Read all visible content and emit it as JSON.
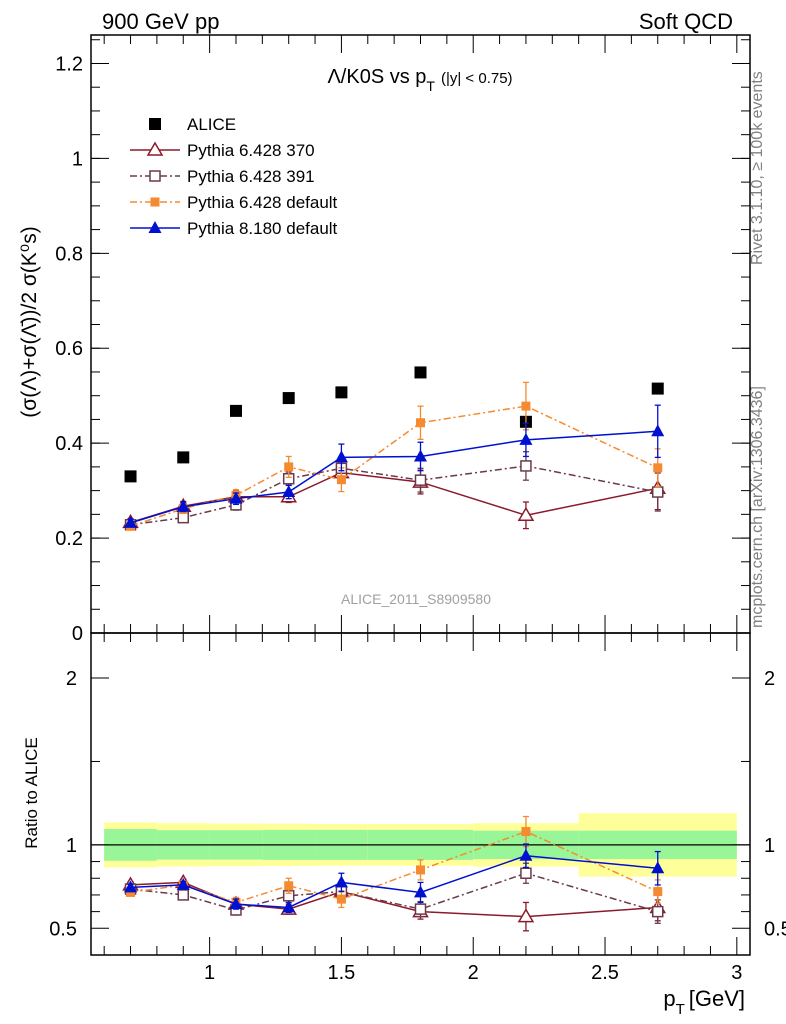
{
  "header": {
    "left": "900 GeV pp",
    "right": "Soft QCD"
  },
  "side_labels": {
    "rivet": "Rivet 3.1.10, ≥ 100k events",
    "mcplots": "mcplots.cern.ch [arXiv:1306.3436]"
  },
  "plot_title": {
    "main": "Λ/K0S vs p",
    "sub": "T",
    "suffix": "(|y| < 0.75)"
  },
  "watermark": "ALICE_2011_S8909580",
  "colors": {
    "alice": "#000000",
    "p370": "#8b1a2b",
    "p391": "#6b3a4a",
    "p6def": "#f58a30",
    "p8def": "#0010d0",
    "band_inner": "#98f598",
    "band_outer": "#ffff99"
  },
  "chart_data": [
    {
      "type": "scatter",
      "ylabel": "(σ(Λ)+σ(Λ̄))/2 σ(K⁰s)",
      "ylim": [
        0,
        1.26
      ],
      "xlim": [
        0.55,
        3.05
      ],
      "yticks": [
        "0",
        "0.2",
        "0.4",
        "0.6",
        "0.8",
        "1",
        "1.2"
      ],
      "legend_placement": "top-left",
      "series": [
        {
          "name": "ALICE",
          "marker": "filled-square",
          "x": [
            0.7,
            0.9,
            1.1,
            1.3,
            1.5,
            1.8,
            2.2,
            2.7
          ],
          "y": [
            0.33,
            0.37,
            0.468,
            0.495,
            0.507,
            0.549,
            0.445,
            0.515
          ]
        },
        {
          "name": "Pythia 6.428 370",
          "marker": "open-triangle",
          "line": "solid",
          "x": [
            0.7,
            0.9,
            1.1,
            1.3,
            1.5,
            1.8,
            2.2,
            2.7
          ],
          "y": [
            0.233,
            0.267,
            0.287,
            0.287,
            0.338,
            0.318,
            0.248,
            0.305
          ],
          "err": [
            0.008,
            0.01,
            0.012,
            0.012,
            0.02,
            0.025,
            0.028,
            0.045
          ]
        },
        {
          "name": "Pythia 6.428 391",
          "marker": "open-square",
          "line": "dash-dot",
          "x": [
            0.7,
            0.9,
            1.1,
            1.3,
            1.5,
            1.8,
            2.2,
            2.7
          ],
          "y": [
            0.228,
            0.243,
            0.27,
            0.325,
            0.347,
            0.322,
            0.352,
            0.297
          ],
          "err": [
            0.008,
            0.009,
            0.011,
            0.014,
            0.02,
            0.025,
            0.03,
            0.04
          ]
        },
        {
          "name": "Pythia 6.428 default",
          "marker": "filled-square-small",
          "line": "dash-dot",
          "x": [
            0.7,
            0.9,
            1.1,
            1.3,
            1.5,
            1.8,
            2.2,
            2.7
          ],
          "y": [
            0.225,
            0.262,
            0.29,
            0.35,
            0.323,
            0.443,
            0.478,
            0.348
          ],
          "err": [
            0.008,
            0.01,
            0.012,
            0.022,
            0.025,
            0.035,
            0.05,
            0.04
          ]
        },
        {
          "name": "Pythia 8.180 default",
          "marker": "filled-triangle",
          "line": "solid",
          "x": [
            0.7,
            0.9,
            1.1,
            1.3,
            1.5,
            1.8,
            2.2,
            2.7
          ],
          "y": [
            0.232,
            0.266,
            0.283,
            0.297,
            0.37,
            0.372,
            0.407,
            0.425
          ],
          "err": [
            0.008,
            0.01,
            0.012,
            0.014,
            0.028,
            0.03,
            0.035,
            0.055
          ]
        }
      ]
    },
    {
      "type": "scatter",
      "ylabel": "Ratio to ALICE",
      "xlabel": "p",
      "xlabel_sub": "T",
      "xlabel_unit": "[GeV]",
      "ylim": [
        0.34,
        2.27
      ],
      "xlim": [
        0.55,
        3.05
      ],
      "xticks": [
        "1",
        "1.5",
        "2",
        "2.5",
        "3"
      ],
      "yticks": [
        "0.5",
        "1",
        "2"
      ],
      "reference_line": 1,
      "uncertainty_bands": {
        "bins": [
          [
            0.6,
            0.8
          ],
          [
            0.8,
            1.0
          ],
          [
            1.0,
            1.2
          ],
          [
            1.2,
            1.4
          ],
          [
            1.4,
            1.6
          ],
          [
            1.6,
            2.0
          ],
          [
            2.0,
            2.4
          ],
          [
            2.4,
            3.0
          ]
        ],
        "inner": [
          0.095,
          0.088,
          0.088,
          0.09,
          0.09,
          0.09,
          0.085,
          0.085
        ],
        "outer": [
          0.135,
          0.13,
          0.128,
          0.127,
          0.125,
          0.125,
          0.13,
          0.19
        ]
      },
      "series": [
        {
          "name": "Pythia 6.428 370",
          "x": [
            0.7,
            0.9,
            1.1,
            1.3,
            1.5,
            1.8,
            2.2,
            2.7
          ],
          "y": [
            0.76,
            0.775,
            0.645,
            0.615,
            0.72,
            0.6,
            0.57,
            0.625
          ],
          "err": [
            0.02,
            0.02,
            0.03,
            0.03,
            0.04,
            0.045,
            0.085,
            0.08
          ]
        },
        {
          "name": "Pythia 6.428 391",
          "x": [
            0.7,
            0.9,
            1.1,
            1.3,
            1.5,
            1.8,
            2.2,
            2.7
          ],
          "y": [
            0.735,
            0.7,
            0.61,
            0.695,
            0.72,
            0.615,
            0.83,
            0.6
          ],
          "err": [
            0.02,
            0.02,
            0.03,
            0.03,
            0.04,
            0.045,
            0.06,
            0.07
          ]
        },
        {
          "name": "Pythia 6.428 default",
          "x": [
            0.7,
            0.9,
            1.1,
            1.3,
            1.5,
            1.8,
            2.2,
            2.7
          ],
          "y": [
            0.715,
            0.76,
            0.655,
            0.755,
            0.675,
            0.85,
            1.08,
            0.72
          ],
          "err": [
            0.02,
            0.02,
            0.03,
            0.045,
            0.05,
            0.06,
            0.09,
            0.07
          ]
        },
        {
          "name": "Pythia 8.180 default",
          "x": [
            0.7,
            0.9,
            1.1,
            1.3,
            1.5,
            1.8,
            2.2,
            2.7
          ],
          "y": [
            0.745,
            0.76,
            0.645,
            0.625,
            0.775,
            0.715,
            0.935,
            0.86
          ],
          "err": [
            0.02,
            0.02,
            0.03,
            0.03,
            0.055,
            0.06,
            0.07,
            0.1
          ]
        }
      ]
    }
  ]
}
